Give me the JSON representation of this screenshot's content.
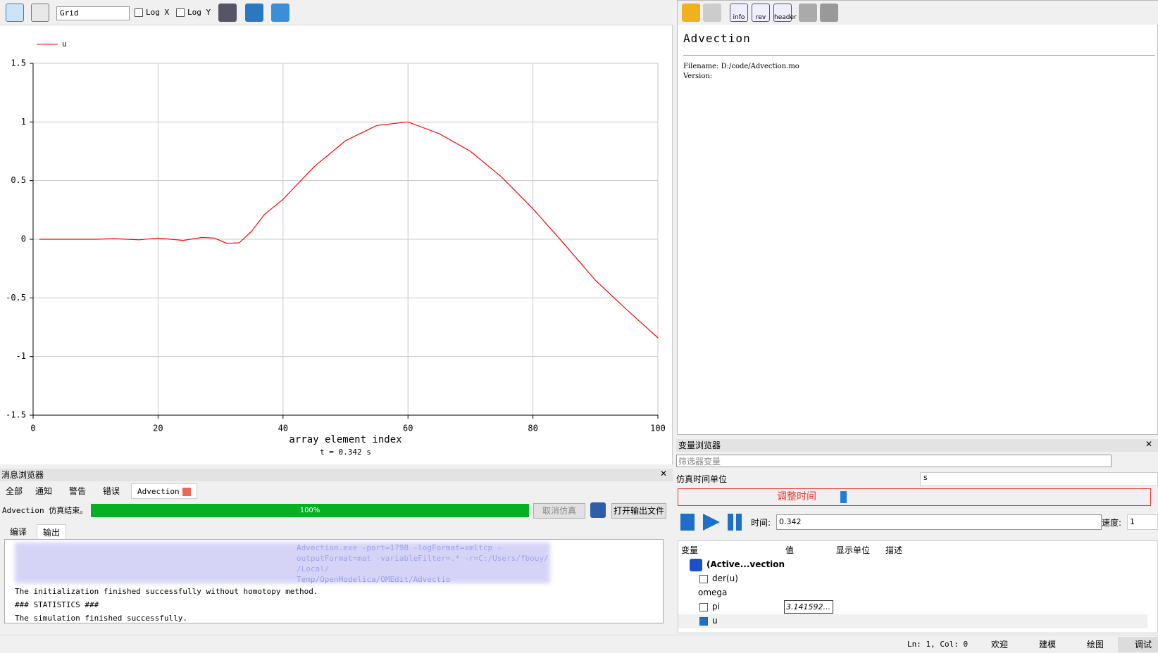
{
  "toolbar": {
    "grid_select": "Grid",
    "log_x": "Log X",
    "log_y": "Log Y"
  },
  "chart_data": {
    "type": "line",
    "x": [
      1,
      5,
      10,
      13,
      15,
      17,
      20,
      22,
      24,
      27,
      29,
      31,
      33,
      35,
      37,
      40,
      45,
      50,
      55,
      60,
      65,
      70,
      75,
      80,
      85,
      90,
      95,
      100
    ],
    "series": [
      {
        "name": "u",
        "color": "#ff0000",
        "values": [
          0,
          0,
          0,
          0.005,
          0,
          -0.005,
          0.01,
          0,
          -0.01,
          0.015,
          0.01,
          -0.035,
          -0.03,
          0.07,
          0.21,
          0.34,
          0.62,
          0.84,
          0.97,
          1.0,
          0.9,
          0.75,
          0.53,
          0.26,
          -0.04,
          -0.35,
          -0.6,
          -0.84
        ]
      }
    ],
    "xlabel": "array element index",
    "subtitle": "t = 0.342 s",
    "xlim": [
      0,
      100
    ],
    "xticks": [
      0,
      20,
      40,
      60,
      80,
      100
    ],
    "ylim": [
      -1.5,
      1.5
    ],
    "yticks": [
      1.5,
      1,
      0.5,
      0,
      -0.5,
      -1,
      -1.5
    ],
    "grid": true,
    "legend": "top-left"
  },
  "messages": {
    "title": "消息浏览器",
    "tabs": [
      "全部",
      "通知",
      "警告",
      "错误",
      "Advection"
    ],
    "status": "Advection 仿真结束。",
    "progress": "100%",
    "cancel": "取消仿真",
    "open_output": "打开输出文件",
    "subtabs": [
      "编译",
      "输出"
    ],
    "partial_lines": [
      "Advection.exe -port=1798 -logFormat=xmltcp -",
      "outputFormat=mat -variableFilter=.* -r=C:/Users/fbouy/",
      "/Local/",
      "Temp/OpenModelica/OMEdit/Advectio"
    ],
    "log_lines": [
      "The initialization finished successfully without homotopy method.",
      "### STATISTICS ###",
      "The simulation finished successfully."
    ]
  },
  "doc": {
    "buttons": [
      "info",
      "rev",
      "header"
    ],
    "title": "Advection",
    "filename": "Filename: D:/code/Advection.mo",
    "version": "Version:"
  },
  "variables": {
    "title": "变量浏览器",
    "filter": "筛选器变量",
    "time_unit_label": "仿真时间单位",
    "time_unit": "s",
    "adjust": "调整时间",
    "time_label": "时间:",
    "time": "0.342",
    "speed_label": "速度:",
    "speed": "1",
    "columns": [
      "变量",
      "值",
      "显示单位",
      "描述"
    ],
    "tree": [
      {
        "label": "(Active...vection"
      },
      {
        "label": "der(u)"
      },
      {
        "label": "omega"
      },
      {
        "label": "pi",
        "value": "3.141592..."
      },
      {
        "label": "u"
      }
    ]
  },
  "status_bar": {
    "position": "Ln: 1, Col: 0",
    "perspectives": [
      "欢迎",
      "建模",
      "绘图",
      "调试"
    ]
  }
}
